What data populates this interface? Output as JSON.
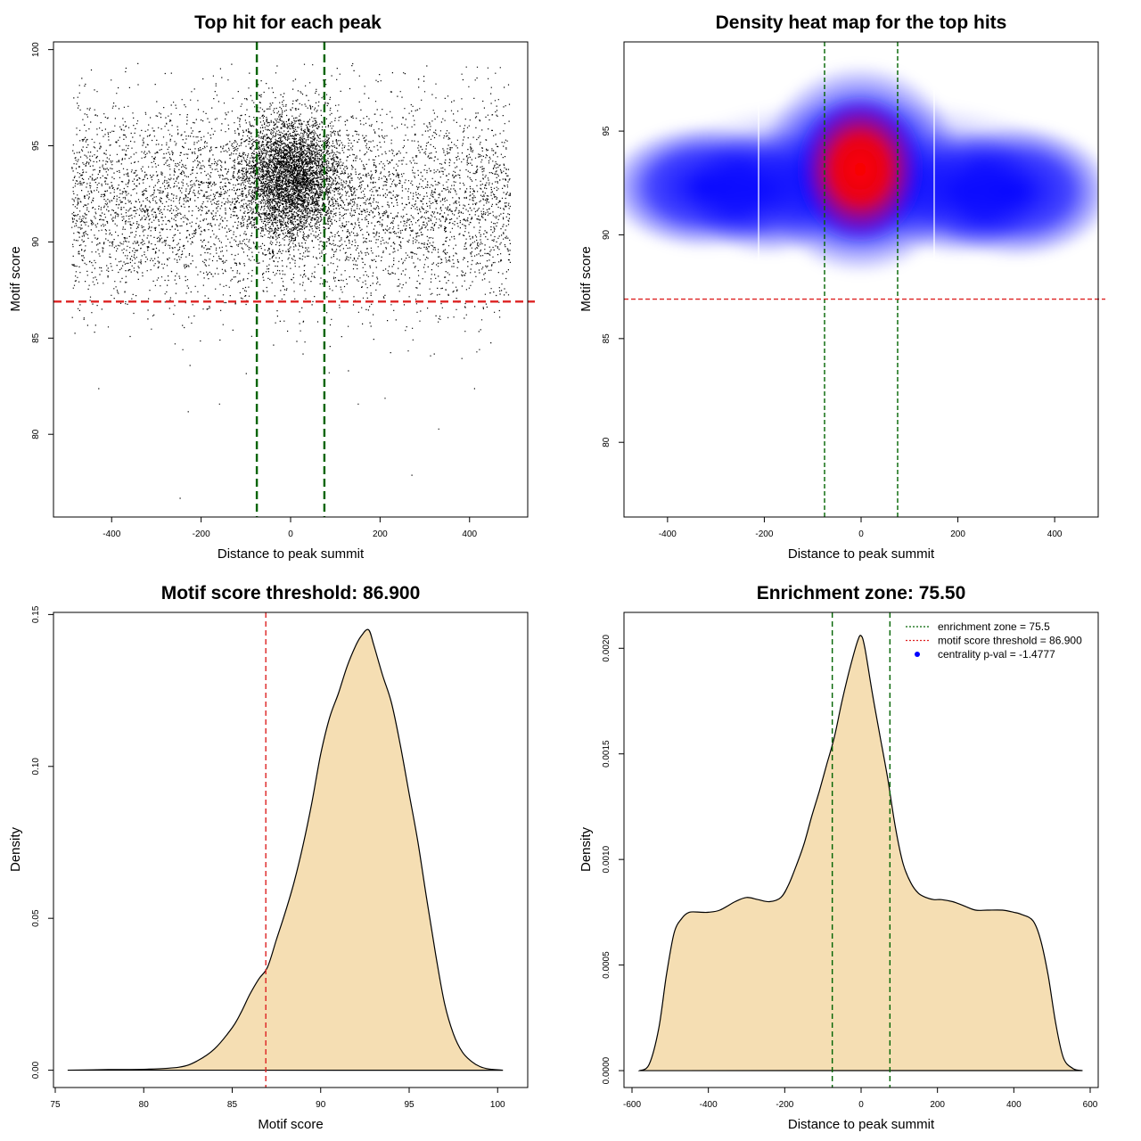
{
  "chart_data": [
    {
      "type": "scatter",
      "title": "Top hit for each peak",
      "xlabel": "Distance to peak summit",
      "ylabel": "Motif score",
      "xlim": [
        -530,
        530
      ],
      "ylim": [
        75.7,
        100.4
      ],
      "xticks": [
        -400,
        -200,
        0,
        200,
        400
      ],
      "yticks": [
        80,
        85,
        90,
        95,
        100
      ],
      "points_note": "≈20000 points, one per peak",
      "point_color": "#000000",
      "distribution": {
        "x_range": [
          -490,
          490
        ],
        "score_center": 92.0,
        "score_spread": 2.6,
        "central_cluster": {
          "x": 0,
          "x_spread": 55,
          "score_center": 93.5,
          "score_spread": 1.5
        }
      },
      "outliers": [
        {
          "x": -248,
          "y": 76.7
        },
        {
          "x": 270,
          "y": 77.9
        },
        {
          "x": 330,
          "y": 80.3
        },
        {
          "x": -230,
          "y": 81.2
        },
        {
          "x": -160,
          "y": 81.6
        },
        {
          "x": 150,
          "y": 81.6
        },
        {
          "x": 210,
          "y": 81.9
        },
        {
          "x": -430,
          "y": 82.4
        },
        {
          "x": 410,
          "y": 82.4
        }
      ],
      "vlines": [
        {
          "x": -75.5,
          "color": "#006400",
          "style": "dashed"
        },
        {
          "x": 75.5,
          "color": "#006400",
          "style": "dashed"
        }
      ],
      "hlines": [
        {
          "y": 86.9,
          "color": "#DD2222",
          "style": "dashed"
        }
      ]
    },
    {
      "type": "heatmap",
      "title": "Density heat map for the top hits",
      "xlabel": "Distance to peak summit",
      "ylabel": "Motif score",
      "xlim": [
        -490,
        490
      ],
      "ylim": [
        76.4,
        99.3
      ],
      "xticks": [
        -400,
        -200,
        0,
        200,
        400
      ],
      "yticks": [
        80,
        85,
        90,
        95
      ],
      "colormap": [
        "#FFFFFF",
        "#0000FF",
        "#FF0000"
      ],
      "density_peak": {
        "x": 0,
        "y": 93.0
      },
      "vlines": [
        {
          "x": -75.5,
          "color": "#006400",
          "style": "dashed"
        },
        {
          "x": 75.5,
          "color": "#006400",
          "style": "dashed"
        }
      ],
      "hlines": [
        {
          "y": 86.9,
          "color": "#DD2222",
          "style": "dashed"
        }
      ]
    },
    {
      "type": "area",
      "title": "Motif score threshold: 86.900",
      "xlabel": "Motif score",
      "ylabel": "Density",
      "xlim": [
        74.9,
        101.7
      ],
      "ylim": [
        -0.0057,
        0.1507
      ],
      "xticks": [
        75,
        80,
        85,
        90,
        95,
        100
      ],
      "yticks": [
        0.0,
        0.05,
        0.1,
        0.15
      ],
      "ytick_labels": [
        "0.00",
        "0.05",
        "0.10",
        "0.15"
      ],
      "fill_color": "#F5DEB3",
      "x": [
        75.7,
        78,
        80,
        82,
        83,
        84,
        85,
        85.5,
        86,
        86.5,
        87,
        87.5,
        88,
        88.5,
        89,
        89.5,
        90,
        90.5,
        91,
        91.5,
        92,
        92.3,
        92.7,
        93,
        93.5,
        94,
        94.5,
        95,
        95.5,
        96,
        96.5,
        97,
        97.5,
        98,
        98.5,
        99,
        99.5,
        100.3
      ],
      "y": [
        0.0,
        0.0002,
        0.0003,
        0.001,
        0.003,
        0.007,
        0.014,
        0.019,
        0.025,
        0.03,
        0.034,
        0.043,
        0.052,
        0.062,
        0.074,
        0.088,
        0.104,
        0.116,
        0.124,
        0.133,
        0.14,
        0.143,
        0.145,
        0.14,
        0.13,
        0.121,
        0.107,
        0.091,
        0.075,
        0.056,
        0.038,
        0.022,
        0.012,
        0.006,
        0.003,
        0.0012,
        0.0004,
        0.0
      ]
    },
    {
      "type": "area",
      "title": "Enrichment zone: 75.50",
      "xlabel": "Distance to peak summit",
      "ylabel": "Density",
      "xlim": [
        -621,
        621
      ],
      "ylim": [
        -8e-05,
        0.00217
      ],
      "xticks": [
        -600,
        -400,
        -200,
        0,
        200,
        400,
        600
      ],
      "yticks": [
        0.0,
        0.0005,
        0.001,
        0.0015,
        0.002
      ],
      "ytick_labels": [
        "0.0000",
        "0.0005",
        "0.0010",
        "0.0015",
        "0.0020"
      ],
      "fill_color": "#F5DEB3",
      "x": [
        -580,
        -555,
        -530,
        -510,
        -490,
        -470,
        -450,
        -420,
        -400,
        -370,
        -330,
        -300,
        -270,
        -240,
        -210,
        -190,
        -170,
        -150,
        -130,
        -110,
        -90,
        -70,
        -50,
        -30,
        -10,
        0,
        10,
        30,
        50,
        70,
        90,
        110,
        130,
        150,
        170,
        190,
        210,
        240,
        270,
        300,
        330,
        370,
        400,
        420,
        450,
        470,
        490,
        510,
        530,
        555,
        580
      ],
      "y": [
        0.0,
        3e-05,
        0.0002,
        0.00045,
        0.00065,
        0.00072,
        0.00075,
        0.00075,
        0.00075,
        0.00076,
        0.0008,
        0.00082,
        0.00081,
        0.0008,
        0.00082,
        0.00088,
        0.00097,
        0.00107,
        0.0012,
        0.00132,
        0.00145,
        0.00158,
        0.00175,
        0.0019,
        0.00203,
        0.00206,
        0.002,
        0.00178,
        0.00158,
        0.00138,
        0.00115,
        0.00098,
        0.00089,
        0.00084,
        0.00082,
        0.00081,
        0.00081,
        0.0008,
        0.00078,
        0.00076,
        0.00076,
        0.00076,
        0.00075,
        0.00074,
        0.00071,
        0.00062,
        0.00045,
        0.00022,
        6e-05,
        1e-05,
        0.0
      ],
      "vlines": [
        {
          "x": -75.5,
          "color": "#006400",
          "style": "dashed"
        },
        {
          "x": 75.5,
          "color": "#006400",
          "style": "dashed"
        }
      ],
      "legend": {
        "placement": "top-right",
        "entries": [
          {
            "label": "enrichment zone = 75.5",
            "color": "#006400",
            "kind": "dotted-line"
          },
          {
            "label": "motif score threshold = 86.900",
            "color": "#DD2222",
            "kind": "dotted-line"
          },
          {
            "label": "centrality p-val = -1.4777",
            "color": "#0000FF",
            "kind": "point"
          }
        ]
      }
    }
  ]
}
